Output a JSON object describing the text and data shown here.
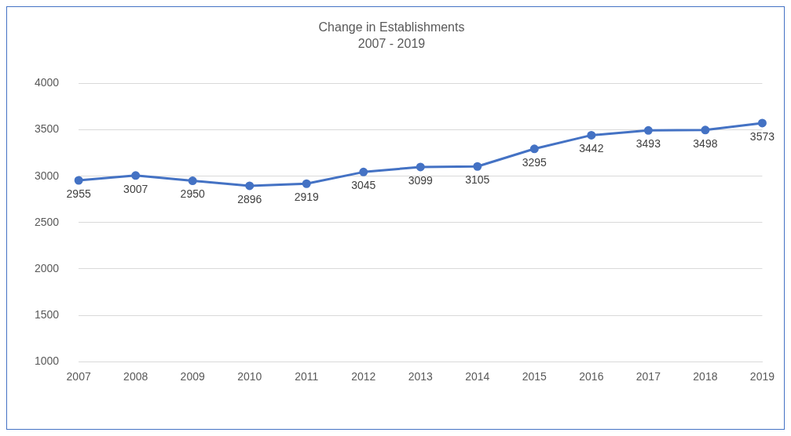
{
  "chart_data": {
    "type": "line",
    "title": "Change in Establishments",
    "subtitle": "2007 - 2019",
    "categories": [
      "2007",
      "2008",
      "2009",
      "2010",
      "2011",
      "2012",
      "2013",
      "2014",
      "2015",
      "2016",
      "2017",
      "2018",
      "2019"
    ],
    "values": [
      2955,
      3007,
      2950,
      2896,
      2919,
      3045,
      3099,
      3105,
      3295,
      3442,
      3493,
      3498,
      3573
    ],
    "color": "#4472c4",
    "ylim": [
      1000,
      4000
    ],
    "yticks": [
      1000,
      1500,
      2000,
      2500,
      3000,
      3500,
      4000
    ],
    "grid": "y",
    "legend": false,
    "marker": "circle",
    "line_style": "solid",
    "data_labels": true
  }
}
